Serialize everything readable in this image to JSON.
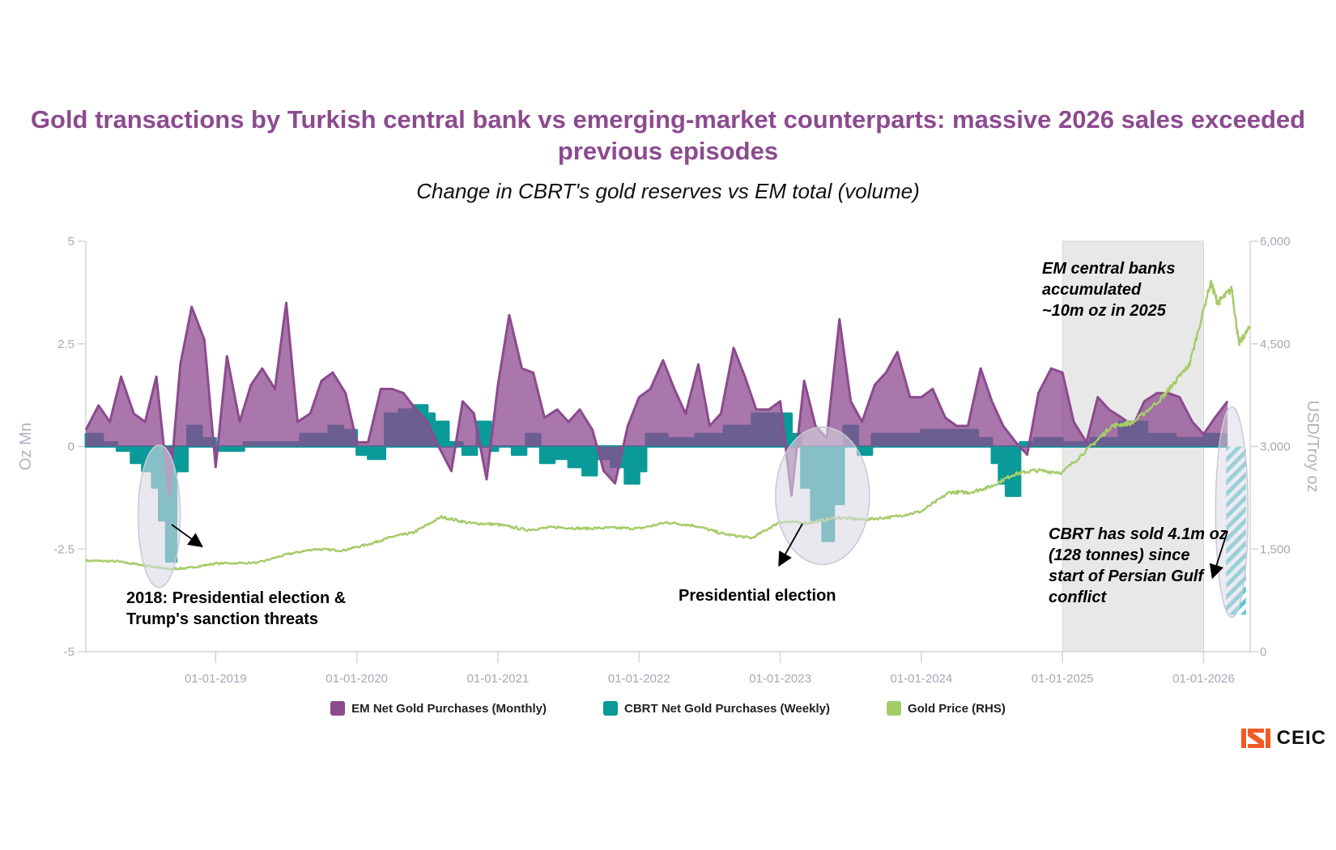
{
  "chart_data": {
    "type": "area",
    "title": "Gold transactions by Turkish central bank vs emerging-market counterparts: massive 2026 sales exceeded previous episodes",
    "subtitle": "Change in CBRT's gold reserves vs EM total (volume)",
    "xlabel": "",
    "ylabel_left": "Oz Mn",
    "ylabel_right": "USD/Troy oz",
    "ylim_left": [
      -5,
      5
    ],
    "ylim_right": [
      0,
      6000
    ],
    "yticks_left": [
      "5",
      "2.5",
      "0",
      "-2.5",
      "-5"
    ],
    "yticks_left_values": [
      5,
      2.5,
      0,
      -2.5,
      -5
    ],
    "yticks_right": [
      "6,000",
      "4,500",
      "3,000",
      "1,500",
      "0"
    ],
    "yticks_right_values": [
      6000,
      4500,
      3000,
      1500,
      0
    ],
    "xticks": [
      "01-01-2019",
      "01-01-2020",
      "01-01-2021",
      "01-01-2022",
      "01-01-2023",
      "01-01-2024",
      "01-01-2025",
      "01-01-2026"
    ],
    "xticks_values": [
      2019.0,
      2020.0,
      2021.0,
      2022.0,
      2023.0,
      2024.0,
      2025.0,
      2026.0
    ],
    "xrange": [
      2018.08,
      2026.33
    ],
    "grid": false,
    "legend_position": "bottom",
    "highlight_band": {
      "from": 2025.0,
      "to": 2026.0
    },
    "series": [
      {
        "name": "EM Net Gold Purchases (Monthly)",
        "color": "#8c4a8f",
        "axis": "left",
        "x": [
          2018.08,
          2018.17,
          2018.25,
          2018.33,
          2018.42,
          2018.5,
          2018.58,
          2018.67,
          2018.75,
          2018.83,
          2018.92,
          2019.0,
          2019.08,
          2019.17,
          2019.25,
          2019.33,
          2019.42,
          2019.5,
          2019.58,
          2019.67,
          2019.75,
          2019.83,
          2019.92,
          2020.0,
          2020.08,
          2020.17,
          2020.25,
          2020.33,
          2020.42,
          2020.5,
          2020.58,
          2020.67,
          2020.75,
          2020.83,
          2020.92,
          2021.0,
          2021.08,
          2021.17,
          2021.25,
          2021.33,
          2021.42,
          2021.5,
          2021.58,
          2021.67,
          2021.75,
          2021.83,
          2021.92,
          2022.0,
          2022.08,
          2022.17,
          2022.25,
          2022.33,
          2022.42,
          2022.5,
          2022.58,
          2022.67,
          2022.75,
          2022.83,
          2022.92,
          2023.0,
          2023.08,
          2023.17,
          2023.25,
          2023.33,
          2023.42,
          2023.5,
          2023.58,
          2023.67,
          2023.75,
          2023.83,
          2023.92,
          2024.0,
          2024.08,
          2024.17,
          2024.25,
          2024.33,
          2024.42,
          2024.5,
          2024.58,
          2024.67,
          2024.75,
          2024.83,
          2024.92,
          2025.0,
          2025.08,
          2025.17,
          2025.25,
          2025.33,
          2025.42,
          2025.5,
          2025.58,
          2025.67,
          2025.75,
          2025.83,
          2025.92,
          2026.0,
          2026.08,
          2026.17
        ],
        "values": [
          0.4,
          1.0,
          0.6,
          1.7,
          0.8,
          0.6,
          1.7,
          -1.2,
          2.0,
          3.4,
          2.6,
          -0.5,
          2.2,
          0.6,
          1.5,
          1.9,
          1.4,
          3.5,
          0.6,
          0.8,
          1.6,
          1.8,
          1.3,
          0.1,
          0.1,
          1.4,
          1.4,
          1.3,
          0.9,
          0.6,
          0.0,
          -0.6,
          1.1,
          0.8,
          -0.8,
          1.5,
          3.2,
          1.9,
          1.8,
          0.7,
          0.9,
          0.6,
          0.9,
          0.4,
          -0.6,
          -0.9,
          0.5,
          1.2,
          1.4,
          2.1,
          1.4,
          0.8,
          2.0,
          0.5,
          0.8,
          2.4,
          1.7,
          0.9,
          0.9,
          1.1,
          -1.2,
          1.6,
          0.5,
          0.2,
          3.1,
          1.1,
          0.6,
          1.5,
          1.8,
          2.3,
          1.2,
          1.2,
          1.4,
          0.7,
          0.5,
          0.5,
          1.9,
          1.1,
          0.5,
          0.1,
          -0.2,
          1.3,
          1.9,
          1.8,
          0.6,
          0.1,
          1.2,
          0.9,
          0.7,
          0.5,
          1.1,
          1.3,
          1.3,
          1.2,
          0.6,
          0.3,
          0.7,
          1.1
        ]
      },
      {
        "name": "CBRT Net Gold Purchases (Weekly)",
        "color": "#0a9a98",
        "axis": "left",
        "x": [
          2018.08,
          2018.2,
          2018.3,
          2018.4,
          2018.48,
          2018.55,
          2018.6,
          2018.65,
          2018.72,
          2018.8,
          2018.9,
          2019.0,
          2019.1,
          2019.2,
          2019.4,
          2019.6,
          2019.8,
          2019.9,
          2020.0,
          2020.08,
          2020.2,
          2020.3,
          2020.4,
          2020.5,
          2020.55,
          2020.65,
          2020.75,
          2020.85,
          2020.95,
          2021.0,
          2021.1,
          2021.2,
          2021.3,
          2021.4,
          2021.5,
          2021.6,
          2021.7,
          2021.8,
          2021.9,
          2022.0,
          2022.05,
          2022.1,
          2022.2,
          2022.4,
          2022.6,
          2022.8,
          2023.0,
          2023.08,
          2023.15,
          2023.22,
          2023.3,
          2023.38,
          2023.45,
          2023.55,
          2023.65,
          2023.8,
          2024.0,
          2024.2,
          2024.4,
          2024.5,
          2024.55,
          2024.6,
          2024.7,
          2024.8,
          2025.0,
          2025.2,
          2025.4,
          2025.6,
          2025.8,
          2026.0,
          2026.16
        ],
        "values": [
          0.3,
          0.1,
          -0.1,
          -0.4,
          -0.6,
          -1.0,
          -1.8,
          -2.8,
          -0.6,
          0.5,
          0.2,
          -0.1,
          -0.1,
          0.1,
          0.1,
          0.3,
          0.5,
          0.4,
          -0.2,
          -0.3,
          0.8,
          0.9,
          1.0,
          0.8,
          0.6,
          0.1,
          -0.2,
          0.6,
          -0.1,
          0.0,
          -0.2,
          0.3,
          -0.4,
          -0.3,
          -0.5,
          -0.7,
          -0.3,
          -0.5,
          -0.9,
          -0.6,
          0.3,
          0.3,
          0.2,
          0.3,
          0.5,
          0.8,
          0.8,
          0.3,
          -1.0,
          -1.8,
          -2.3,
          -1.4,
          0.5,
          -0.2,
          0.3,
          0.3,
          0.4,
          0.4,
          0.2,
          -0.4,
          -0.9,
          -1.2,
          0.1,
          0.2,
          0.1,
          0.2,
          0.6,
          0.3,
          0.2,
          0.3,
          0.3
        ]
      },
      {
        "name": "CBRT Net Gold Purchases (Weekly) — 2026 sales (hatched)",
        "color": "#5ac8cf",
        "axis": "left",
        "x": [
          2026.16,
          2026.3
        ],
        "values": [
          0,
          -4.1
        ]
      },
      {
        "name": "Gold Price (RHS)",
        "color": "#a6cc6a",
        "axis": "right",
        "x": [
          2018.08,
          2018.3,
          2018.5,
          2018.65,
          2018.8,
          2019.0,
          2019.3,
          2019.5,
          2019.7,
          2019.9,
          2020.1,
          2020.25,
          2020.4,
          2020.6,
          2020.8,
          2021.0,
          2021.2,
          2021.4,
          2021.6,
          2021.8,
          2022.0,
          2022.2,
          2022.4,
          2022.6,
          2022.8,
          2023.0,
          2023.2,
          2023.4,
          2023.6,
          2023.8,
          2024.0,
          2024.2,
          2024.35,
          2024.5,
          2024.65,
          2024.8,
          2025.0,
          2025.2,
          2025.35,
          2025.5,
          2025.7,
          2025.8,
          2025.9,
          2026.05,
          2026.1,
          2026.2,
          2026.25,
          2026.33
        ],
        "values": [
          1330,
          1320,
          1260,
          1210,
          1220,
          1290,
          1300,
          1420,
          1500,
          1480,
          1580,
          1680,
          1740,
          1970,
          1880,
          1860,
          1780,
          1820,
          1800,
          1810,
          1800,
          1890,
          1840,
          1720,
          1660,
          1900,
          1880,
          1960,
          1930,
          1970,
          2050,
          2330,
          2330,
          2420,
          2590,
          2650,
          2620,
          3000,
          3300,
          3350,
          3700,
          3950,
          4200,
          5400,
          5100,
          5300,
          4500,
          4750
        ]
      }
    ],
    "annotations": [
      {
        "name": "election-2018",
        "lines": [
          "2018: Presidential election &",
          "Trump's sanction threats"
        ]
      },
      {
        "name": "election-2023",
        "lines": [
          "Presidential election"
        ]
      },
      {
        "name": "em-2025",
        "lines": [
          "EM central banks",
          "accumulated",
          "~10m oz in 2025"
        ]
      },
      {
        "name": "cbrt-2026",
        "lines": [
          "CBRT has sold 4.1m oz",
          "(128 tonnes) since",
          "start of Persian Gulf",
          "conflict"
        ]
      }
    ]
  },
  "legend": [
    {
      "label": "EM Net Gold Purchases (Monthly)",
      "color": "#8c4a8f"
    },
    {
      "label": "CBRT Net Gold Purchases (Weekly)",
      "color": "#0a9a98"
    },
    {
      "label": "Gold Price (RHS)",
      "color": "#a6cc6a"
    }
  ],
  "branding": {
    "logo_text": "CEIC",
    "logo_color": "#f15a24"
  }
}
